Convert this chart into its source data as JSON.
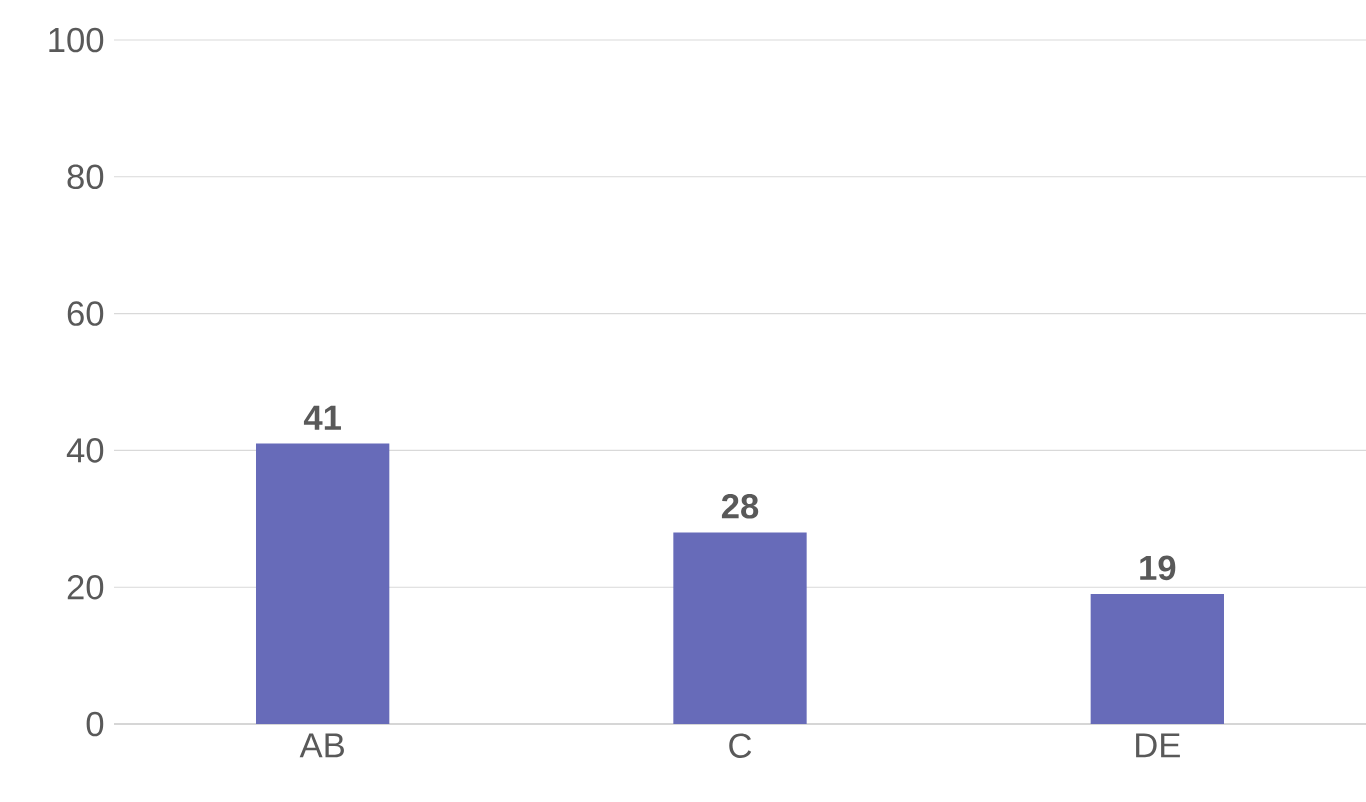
{
  "chart_data": {
    "type": "bar",
    "categories": [
      "AB",
      "C",
      "DE"
    ],
    "values": [
      41,
      28,
      19
    ],
    "color": "#676bb9",
    "ylim": [
      0,
      100
    ],
    "yticks": [
      0,
      20,
      40,
      60,
      80,
      100
    ],
    "grid": "y",
    "data_labels": true
  }
}
